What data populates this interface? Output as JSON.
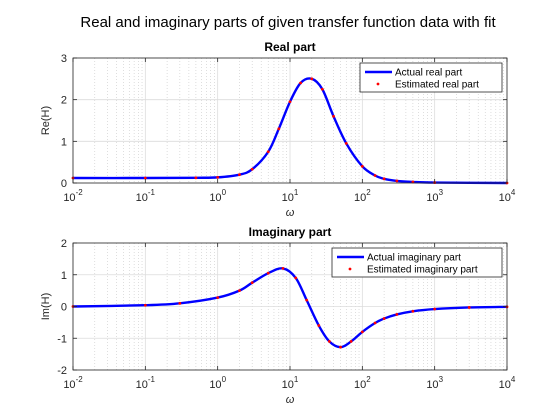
{
  "figure": {
    "title": "Real and imaginary parts of given transfer function data with fit"
  },
  "colors": {
    "actual": "#0000ff",
    "estimated": "#ff0000",
    "axis": "#262626",
    "grid": "#dcdcdc"
  },
  "chart_data": [
    {
      "type": "line",
      "title": "Real part",
      "xlabel": "ω",
      "ylabel": "Re(H)",
      "xscale": "log",
      "xlim": [
        0.01,
        10000
      ],
      "ylim": [
        0,
        3
      ],
      "yticks": [
        0,
        1,
        2,
        3
      ],
      "xtick_exponents": [
        "-2",
        "-1",
        "0",
        "1",
        "2",
        "3",
        "4"
      ],
      "xtick_base": "10",
      "grid": true,
      "legend": "top-right",
      "x": [
        0.01,
        0.1,
        0.5,
        1,
        2,
        3,
        5,
        7,
        10,
        14,
        20,
        28,
        40,
        60,
        100,
        150,
        200,
        300,
        500,
        1000,
        10000
      ],
      "series": [
        {
          "name": "Actual real part",
          "style": "line",
          "values": [
            0.12,
            0.12,
            0.125,
            0.135,
            0.2,
            0.33,
            0.75,
            1.3,
            1.95,
            2.4,
            2.5,
            2.25,
            1.6,
            0.95,
            0.4,
            0.18,
            0.1,
            0.05,
            0.025,
            0.01,
            0.0
          ]
        },
        {
          "name": "Estimated real part",
          "style": "markers",
          "values": [
            0.12,
            0.12,
            0.125,
            0.135,
            0.2,
            0.33,
            0.75,
            1.3,
            1.95,
            2.4,
            2.5,
            2.25,
            1.6,
            0.95,
            0.4,
            0.18,
            0.1,
            0.05,
            0.025,
            0.01,
            0.0
          ]
        }
      ]
    },
    {
      "type": "line",
      "title": "Imaginary part",
      "xlabel": "ω",
      "ylabel": "Im(H)",
      "xscale": "log",
      "xlim": [
        0.01,
        10000
      ],
      "ylim": [
        -2,
        2
      ],
      "yticks": [
        -2,
        -1,
        0,
        1,
        2
      ],
      "xtick_exponents": [
        "-2",
        "-1",
        "0",
        "1",
        "2",
        "3",
        "4"
      ],
      "xtick_base": "10",
      "grid": true,
      "legend": "top-right",
      "x": [
        0.01,
        0.1,
        0.3,
        1,
        2,
        3,
        5,
        8,
        12,
        17,
        25,
        35,
        50,
        70,
        100,
        150,
        200,
        300,
        500,
        1000,
        3000,
        10000
      ],
      "series": [
        {
          "name": "Actual imaginary part",
          "style": "line",
          "values": [
            0.0,
            0.04,
            0.1,
            0.28,
            0.5,
            0.75,
            1.05,
            1.2,
            0.9,
            0.2,
            -0.6,
            -1.1,
            -1.28,
            -1.1,
            -0.8,
            -0.52,
            -0.38,
            -0.25,
            -0.15,
            -0.08,
            -0.03,
            -0.01
          ]
        },
        {
          "name": "Estimated imaginary part",
          "style": "markers",
          "values": [
            0.0,
            0.04,
            0.1,
            0.28,
            0.5,
            0.75,
            1.05,
            1.2,
            0.9,
            0.2,
            -0.6,
            -1.1,
            -1.28,
            -1.1,
            -0.8,
            -0.52,
            -0.38,
            -0.25,
            -0.15,
            -0.08,
            -0.03,
            -0.01
          ]
        }
      ]
    }
  ]
}
